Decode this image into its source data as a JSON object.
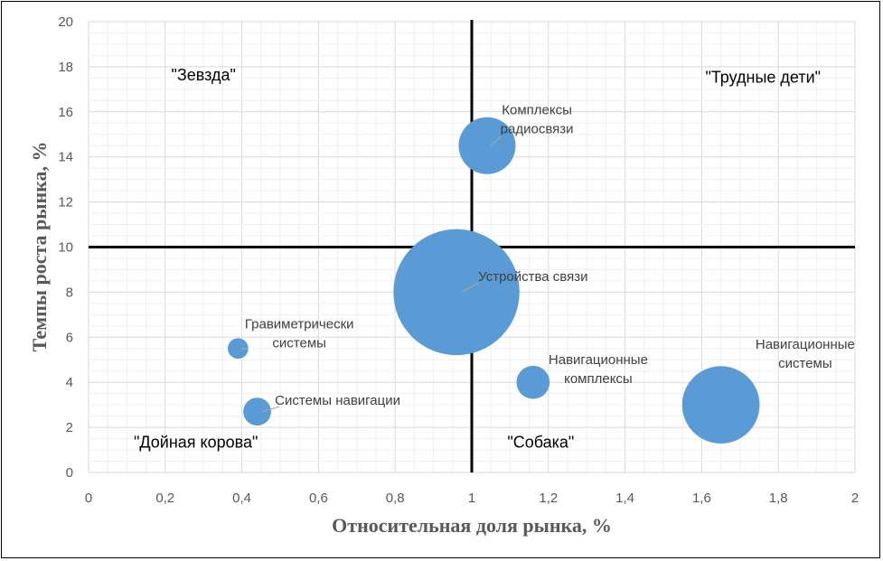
{
  "chart_data": {
    "type": "bubble",
    "xlabel": "Относительная  доля рынка, %",
    "ylabel": "Темпы роста рынка, %",
    "xlim": [
      0,
      2
    ],
    "ylim": [
      0,
      20
    ],
    "x_ticks": [
      "0",
      "0,2",
      "0,4",
      "0,6",
      "0,8",
      "1",
      "1,2",
      "1,4",
      "1,6",
      "1,8",
      "2"
    ],
    "y_ticks": [
      "0",
      "2",
      "4",
      "6",
      "8",
      "10",
      "12",
      "14",
      "16",
      "18",
      "20"
    ],
    "grid": true,
    "divider_lines": {
      "x": 1,
      "y": 10
    },
    "bubble_color": "#5b9bd5",
    "quadrant_labels": [
      {
        "text": "\"Зевзда\"",
        "x": 0.3,
        "y": 17.4
      },
      {
        "text": "\"Трудные дети\"",
        "x": 1.76,
        "y": 17.3
      },
      {
        "text": "\"Дойная корова\"",
        "x": 0.28,
        "y": 1.1
      },
      {
        "text": "\"Собака\"",
        "x": 1.18,
        "y": 1.1
      }
    ],
    "series": [
      {
        "label_lines": [
          "Комплексы",
          "радиосвязи"
        ],
        "x": 1.04,
        "y": 14.5,
        "size": 1.0,
        "label_x": 1.17,
        "label_y": 15.9,
        "leader": true
      },
      {
        "label_lines": [
          "Устройства связи"
        ],
        "x": 0.96,
        "y": 8.0,
        "size": 4.9,
        "label_x": 1.16,
        "label_y": 8.5,
        "leader": true
      },
      {
        "label_lines": [
          "Гравиметрически",
          "системы"
        ],
        "x": 0.39,
        "y": 5.5,
        "size": 0.13,
        "label_x": 0.55,
        "label_y": 6.4,
        "leader": true
      },
      {
        "label_lines": [
          "Системы навигации"
        ],
        "x": 0.44,
        "y": 2.7,
        "size": 0.24,
        "label_x": 0.65,
        "label_y": 3.0,
        "leader": true
      },
      {
        "label_lines": [
          "Навигационные",
          "комплексы"
        ],
        "x": 1.16,
        "y": 4.0,
        "size": 0.34,
        "label_x": 1.33,
        "label_y": 4.8,
        "leader": false
      },
      {
        "label_lines": [
          "Навигационные",
          "системы"
        ],
        "x": 1.65,
        "y": 3.0,
        "size": 1.85,
        "label_x": 1.87,
        "label_y": 5.5,
        "leader": false
      }
    ]
  }
}
